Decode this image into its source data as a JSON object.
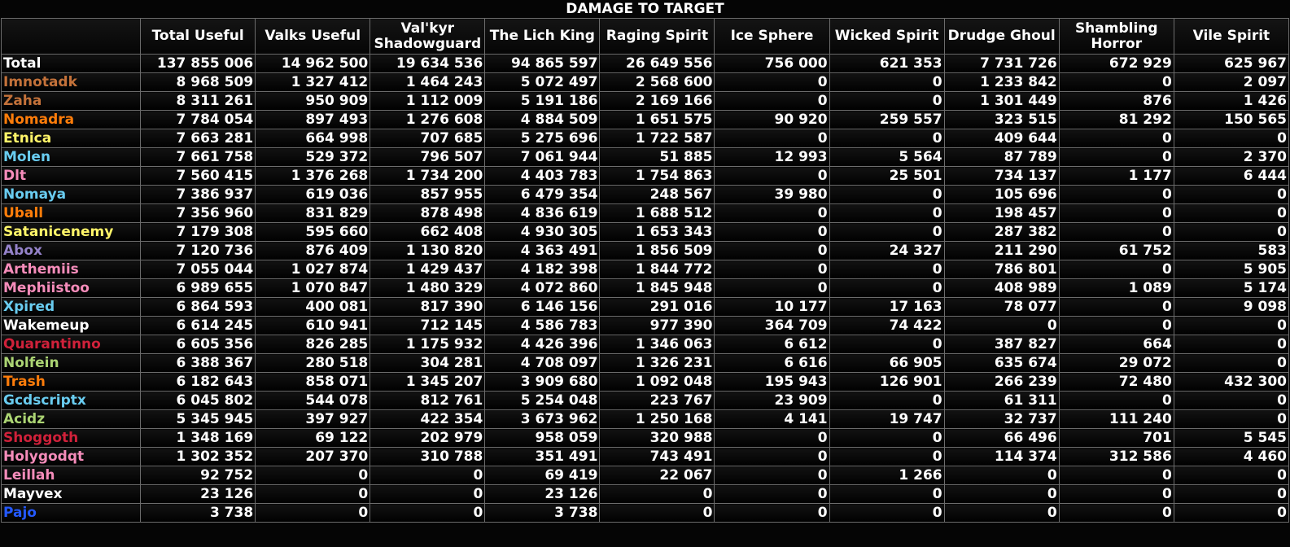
{
  "chart_data": {
    "type": "table",
    "title": "DAMAGE TO TARGET",
    "columns": [
      "",
      "Total Useful",
      "Valks Useful",
      "Val'kyr Shadowguard",
      "The Lich King",
      "Raging Spirit",
      "Ice Sphere",
      "Wicked Spirit",
      "Drudge Ghoul",
      "Shambling Horror",
      "Vile Spirit"
    ],
    "rows": [
      {
        "name": "Total",
        "color": "#ffffff",
        "values": [
          "137 855 006",
          "14 962 500",
          "19 634 536",
          "94 865 597",
          "26 649 556",
          "756 000",
          "621 353",
          "7 731 726",
          "672 929",
          "625 967"
        ]
      },
      {
        "name": "Imnotadk",
        "color": "#c4723a",
        "values": [
          "8 968 509",
          "1 327 412",
          "1 464 243",
          "5 072 497",
          "2 568 600",
          "0",
          "0",
          "1 233 842",
          "0",
          "2 097"
        ]
      },
      {
        "name": "Zaha",
        "color": "#c4723a",
        "values": [
          "8 311 261",
          "950 909",
          "1 112 009",
          "5 191 186",
          "2 169 166",
          "0",
          "0",
          "1 301 449",
          "876",
          "1 426"
        ]
      },
      {
        "name": "Nomadra",
        "color": "#ff7d0a",
        "values": [
          "7 784 054",
          "897 493",
          "1 276 608",
          "4 884 509",
          "1 651 575",
          "90 920",
          "259 557",
          "323 515",
          "81 292",
          "150 565"
        ]
      },
      {
        "name": "Etnica",
        "color": "#fff569",
        "values": [
          "7 663 281",
          "664 998",
          "707 685",
          "5 275 696",
          "1 722 587",
          "0",
          "0",
          "409 644",
          "0",
          "0"
        ]
      },
      {
        "name": "Molen",
        "color": "#69ccf0",
        "values": [
          "7 661 758",
          "529 372",
          "796 507",
          "7 061 944",
          "51 885",
          "12 993",
          "5 564",
          "87 789",
          "0",
          "2 370"
        ]
      },
      {
        "name": "Dlt",
        "color": "#f58cba",
        "values": [
          "7 560 415",
          "1 376 268",
          "1 734 200",
          "4 403 783",
          "1 754 863",
          "0",
          "25 501",
          "734 137",
          "1 177",
          "6 444"
        ]
      },
      {
        "name": "Nomaya",
        "color": "#69ccf0",
        "values": [
          "7 386 937",
          "619 036",
          "857 955",
          "6 479 354",
          "248 567",
          "39 980",
          "0",
          "105 696",
          "0",
          "0"
        ]
      },
      {
        "name": "Uball",
        "color": "#ff7d0a",
        "values": [
          "7 356 960",
          "831 829",
          "878 498",
          "4 836 619",
          "1 688 512",
          "0",
          "0",
          "198 457",
          "0",
          "0"
        ]
      },
      {
        "name": "Satanicenemy",
        "color": "#fff569",
        "values": [
          "7 179 308",
          "595 660",
          "662 408",
          "4 930 305",
          "1 653 343",
          "0",
          "0",
          "287 382",
          "0",
          "0"
        ]
      },
      {
        "name": "Abox",
        "color": "#9482c9",
        "values": [
          "7 120 736",
          "876 409",
          "1 130 820",
          "4 363 491",
          "1 856 509",
          "0",
          "24 327",
          "211 290",
          "61 752",
          "583"
        ]
      },
      {
        "name": "Arthemiis",
        "color": "#f58cba",
        "values": [
          "7 055 044",
          "1 027 874",
          "1 429 437",
          "4 182 398",
          "1 844 772",
          "0",
          "0",
          "786 801",
          "0",
          "5 905"
        ]
      },
      {
        "name": "Mephiistoo",
        "color": "#f58cba",
        "values": [
          "6 989 655",
          "1 070 847",
          "1 480 329",
          "4 072 860",
          "1 845 948",
          "0",
          "0",
          "408 989",
          "1 089",
          "5 174"
        ]
      },
      {
        "name": "Xpired",
        "color": "#69ccf0",
        "values": [
          "6 864 593",
          "400 081",
          "817 390",
          "6 146 156",
          "291 016",
          "10 177",
          "17 163",
          "78 077",
          "0",
          "9 098"
        ]
      },
      {
        "name": "Wakemeup",
        "color": "#ffffff",
        "values": [
          "6 614 245",
          "610 941",
          "712 145",
          "4 586 783",
          "977 390",
          "364 709",
          "74 422",
          "0",
          "0",
          "0"
        ]
      },
      {
        "name": "Quarantinno",
        "color": "#d0213a",
        "values": [
          "6 605 356",
          "826 285",
          "1 175 932",
          "4 426 396",
          "1 346 063",
          "6 612",
          "0",
          "387 827",
          "664",
          "0"
        ]
      },
      {
        "name": "Nolfein",
        "color": "#abd473",
        "values": [
          "6 388 367",
          "280 518",
          "304 281",
          "4 708 097",
          "1 326 231",
          "6 616",
          "66 905",
          "635 674",
          "29 072",
          "0"
        ]
      },
      {
        "name": "Trash",
        "color": "#ff7d0a",
        "values": [
          "6 182 643",
          "858 071",
          "1 345 207",
          "3 909 680",
          "1 092 048",
          "195 943",
          "126 901",
          "266 239",
          "72 480",
          "432 300"
        ]
      },
      {
        "name": "Gcdscriptx",
        "color": "#69ccf0",
        "values": [
          "6 045 802",
          "544 078",
          "812 761",
          "5 254 048",
          "223 767",
          "23 909",
          "0",
          "61 311",
          "0",
          "0"
        ]
      },
      {
        "name": "Acidz",
        "color": "#abd473",
        "values": [
          "5 345 945",
          "397 927",
          "422 354",
          "3 673 962",
          "1 250 168",
          "4 141",
          "19 747",
          "32 737",
          "111 240",
          "0"
        ]
      },
      {
        "name": "Shoggoth",
        "color": "#d0213a",
        "values": [
          "1 348 169",
          "69 122",
          "202 979",
          "958 059",
          "320 988",
          "0",
          "0",
          "66 496",
          "701",
          "5 545"
        ]
      },
      {
        "name": "Holygodqt",
        "color": "#f58cba",
        "values": [
          "1 302 352",
          "207 370",
          "310 788",
          "351 491",
          "743 491",
          "0",
          "0",
          "114 374",
          "312 586",
          "4 460"
        ]
      },
      {
        "name": "Leillah",
        "color": "#f58cba",
        "values": [
          "92 752",
          "0",
          "0",
          "69 419",
          "22 067",
          "0",
          "1 266",
          "0",
          "0",
          "0"
        ]
      },
      {
        "name": "Mayvex",
        "color": "#ffffff",
        "values": [
          "23 126",
          "0",
          "0",
          "23 126",
          "0",
          "0",
          "0",
          "0",
          "0",
          "0"
        ]
      },
      {
        "name": "Pajo",
        "color": "#2459ff",
        "values": [
          "3 738",
          "0",
          "0",
          "3 738",
          "0",
          "0",
          "0",
          "0",
          "0",
          "0"
        ]
      }
    ]
  }
}
